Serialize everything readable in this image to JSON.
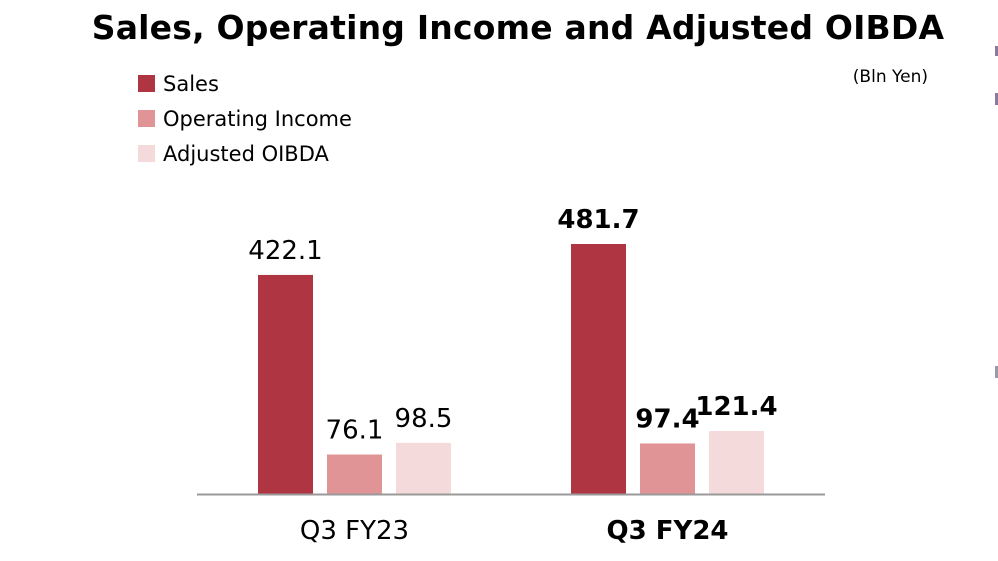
{
  "chart_data": {
    "type": "bar",
    "title": "Sales, Operating Income and Adjusted OIBDA",
    "unit": "(Bln Yen)",
    "xlabel": "",
    "ylabel": "",
    "legend_position": "top-left",
    "grid": false,
    "categories": [
      "Q3 FY23",
      "Q3 FY24"
    ],
    "series": [
      {
        "name": "Sales",
        "color": "#af3543",
        "values": [
          422.1,
          481.7
        ],
        "labels": [
          "422.1",
          "481.7"
        ]
      },
      {
        "name": "Operating Income",
        "color": "#e09496",
        "values": [
          76.1,
          97.4
        ],
        "labels": [
          "76.1",
          "97.4"
        ]
      },
      {
        "name": "Adjusted OIBDA",
        "color": "#f5dadb",
        "values": [
          98.5,
          121.4
        ],
        "labels": [
          "98.5",
          "121.4"
        ]
      }
    ],
    "ylim": [
      0,
      481.7
    ],
    "emphasized_category": "Q3 FY24"
  }
}
